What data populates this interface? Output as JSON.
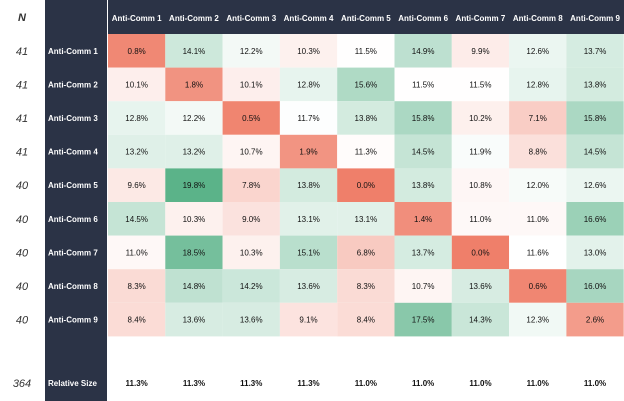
{
  "n_header": "N",
  "colors": {
    "sidebar": "#2b3346",
    "green": "#5bb389",
    "red": "#ef7f6a",
    "neutral": "#ffffff",
    "dark_text": "#111111",
    "n_text": "#333333"
  },
  "chart_data": {
    "type": "heatmap",
    "columns": [
      "Anti-Comm 1",
      "Anti-Comm 2",
      "Anti-Comm 3",
      "Anti-Comm 4",
      "Anti-Comm 5",
      "Anti-Comm 6",
      "Anti-Comm 7",
      "Anti-Comm 8",
      "Anti-Comm 9"
    ],
    "rows": [
      {
        "n": "41",
        "label": "Anti-Comm 1",
        "cells": [
          "0.8%",
          "14.1%",
          "12.2%",
          "10.3%",
          "11.5%",
          "14.9%",
          "9.9%",
          "12.6%",
          "13.7%"
        ]
      },
      {
        "n": "41",
        "label": "Anti-Comm 2",
        "cells": [
          "10.1%",
          "1.8%",
          "10.1%",
          "12.8%",
          "15.6%",
          "11.5%",
          "11.5%",
          "12.8%",
          "13.8%"
        ]
      },
      {
        "n": "41",
        "label": "Anti-Comm 3",
        "cells": [
          "12.8%",
          "12.2%",
          "0.5%",
          "11.7%",
          "13.8%",
          "15.8%",
          "10.2%",
          "7.1%",
          "15.8%"
        ]
      },
      {
        "n": "41",
        "label": "Anti-Comm 4",
        "cells": [
          "13.2%",
          "13.2%",
          "10.7%",
          "1.9%",
          "11.3%",
          "14.5%",
          "11.9%",
          "8.8%",
          "14.5%"
        ]
      },
      {
        "n": "40",
        "label": "Anti-Comm 5",
        "cells": [
          "9.6%",
          "19.8%",
          "7.8%",
          "13.8%",
          "0.0%",
          "13.8%",
          "10.8%",
          "12.0%",
          "12.6%"
        ]
      },
      {
        "n": "40",
        "label": "Anti-Comm 6",
        "cells": [
          "14.5%",
          "10.3%",
          "9.0%",
          "13.1%",
          "13.1%",
          "1.4%",
          "11.0%",
          "11.0%",
          "16.6%"
        ]
      },
      {
        "n": "40",
        "label": "Anti-Comm 7",
        "cells": [
          "11.0%",
          "18.5%",
          "10.3%",
          "15.1%",
          "6.8%",
          "13.7%",
          "0.0%",
          "11.6%",
          "13.0%"
        ]
      },
      {
        "n": "40",
        "label": "Anti-Comm 8",
        "cells": [
          "8.3%",
          "14.8%",
          "14.2%",
          "13.6%",
          "8.3%",
          "10.7%",
          "13.6%",
          "0.6%",
          "16.0%"
        ]
      },
      {
        "n": "40",
        "label": "Anti-Comm 9",
        "cells": [
          "8.4%",
          "13.6%",
          "13.6%",
          "9.1%",
          "8.4%",
          "17.5%",
          "14.3%",
          "12.3%",
          "2.6%"
        ]
      }
    ],
    "footer": {
      "n": "364",
      "label": "Relative Size",
      "cells": [
        "11.3%",
        "11.3%",
        "11.3%",
        "11.3%",
        "11.0%",
        "11.0%",
        "11.0%",
        "11.0%",
        "11.0%"
      ]
    }
  }
}
